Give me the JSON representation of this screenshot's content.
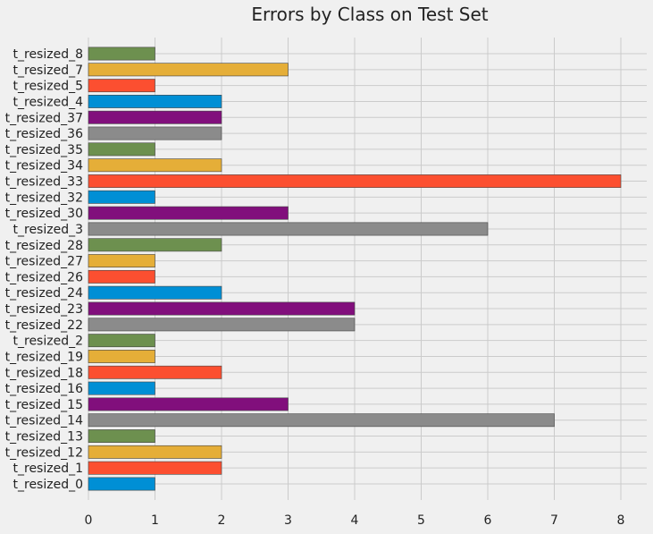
{
  "chart_data": {
    "type": "bar",
    "orientation": "horizontal",
    "title": "Errors by Class on Test Set",
    "xlabel": "",
    "ylabel": "",
    "xlim": [
      0,
      8.4
    ],
    "x_ticks": [
      0,
      1,
      2,
      3,
      4,
      5,
      6,
      7,
      8
    ],
    "grid": true,
    "categories": [
      "t_resized_0",
      "t_resized_1",
      "t_resized_12",
      "t_resized_13",
      "t_resized_14",
      "t_resized_15",
      "t_resized_16",
      "t_resized_18",
      "t_resized_19",
      "t_resized_2",
      "t_resized_22",
      "t_resized_23",
      "t_resized_24",
      "t_resized_26",
      "t_resized_27",
      "t_resized_28",
      "t_resized_3",
      "t_resized_30",
      "t_resized_32",
      "t_resized_33",
      "t_resized_34",
      "t_resized_35",
      "t_resized_36",
      "t_resized_37",
      "t_resized_4",
      "t_resized_5",
      "t_resized_7",
      "t_resized_8"
    ],
    "values": [
      1,
      2,
      2,
      1,
      7,
      3,
      1,
      2,
      1,
      1,
      4,
      4,
      2,
      1,
      1,
      2,
      6,
      3,
      1,
      8,
      2,
      1,
      2,
      2,
      2,
      1,
      3,
      1
    ],
    "colors": [
      "#008fd5",
      "#fc4f30",
      "#e5ae38",
      "#6d904f",
      "#8b8b8b",
      "#810f7c"
    ]
  }
}
